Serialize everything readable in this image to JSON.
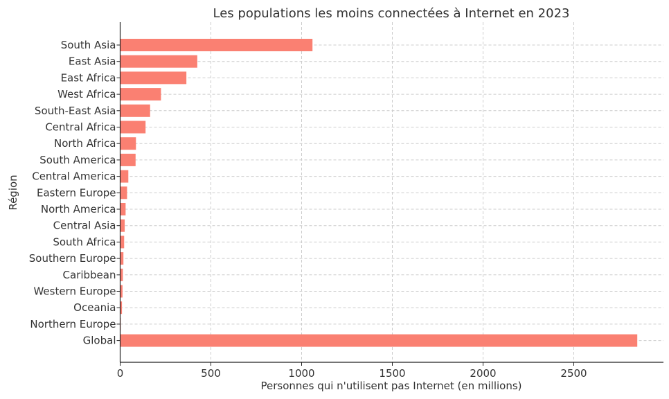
{
  "chart_data": {
    "type": "bar",
    "orientation": "horizontal",
    "title": "Les populations les moins connectées à Internet en 2023",
    "xlabel": "Personnes qui n'utilisent pas Internet (en millions)",
    "ylabel": "Région",
    "categories": [
      "South Asia",
      "East Asia",
      "East Africa",
      "West Africa",
      "South-East Asia",
      "Central Africa",
      "North Africa",
      "South America",
      "Central America",
      "Eastern Europe",
      "North America",
      "Central Asia",
      "South Africa",
      "Southern Europe",
      "Caribbean",
      "Western Europe",
      "Oceania",
      "Northern Europe",
      "Global"
    ],
    "values": [
      1060,
      425,
      365,
      225,
      165,
      140,
      87,
      85,
      45,
      38,
      30,
      25,
      22,
      18,
      15,
      13,
      10,
      3,
      2850
    ],
    "xlim": [
      0,
      3000
    ],
    "xticks": [
      0,
      500,
      1000,
      1500,
      2000,
      2500
    ],
    "grid": true,
    "bar_color": "#fa8072"
  }
}
